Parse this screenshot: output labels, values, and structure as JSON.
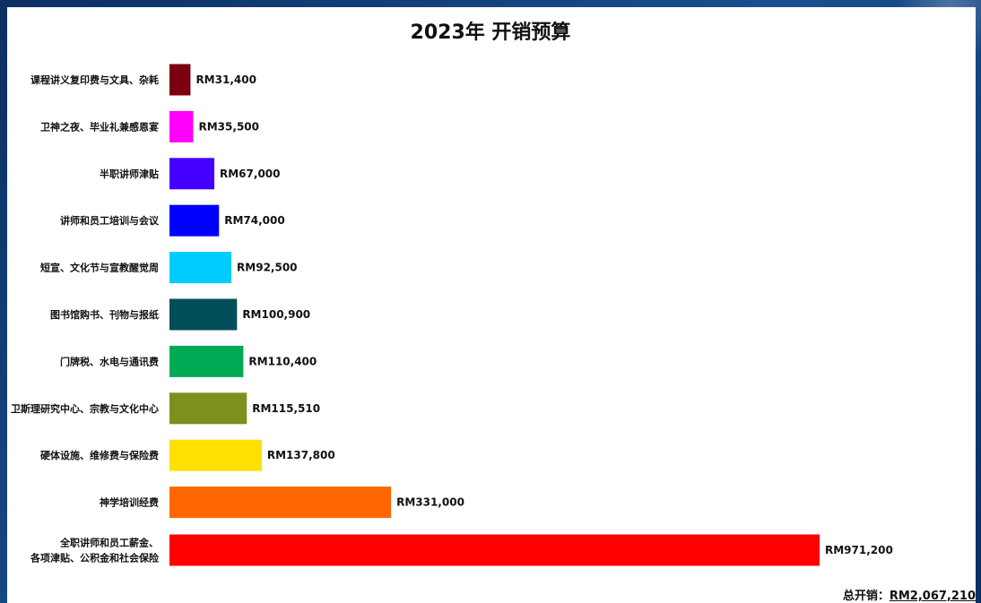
{
  "chart_data": {
    "type": "bar",
    "orientation": "horizontal",
    "title": "2023年 开销预算",
    "categories": [
      [
        "课程讲义复印费与文具、杂耗"
      ],
      [
        "卫神之夜、毕业礼兼感恩宴"
      ],
      [
        "半职讲师津贴"
      ],
      [
        "讲师和员工培训与会议"
      ],
      [
        "短宣、文化节与宣教醒觉周"
      ],
      [
        "图书馆购书、刊物与报纸"
      ],
      [
        "门牌税、水电与通讯费"
      ],
      [
        "卫斯理研究中心、宗教与文化中心"
      ],
      [
        "硬体设施、维修费与保险费"
      ],
      [
        "神学培训经费"
      ],
      [
        "全职讲师和员工薪金、",
        "各项津贴、公积金和社会保险"
      ]
    ],
    "values": [
      31400,
      35500,
      67000,
      74000,
      92500,
      100900,
      110400,
      115510,
      137800,
      331000,
      971200
    ],
    "value_labels": [
      "RM31,400",
      "RM35,500",
      "RM67,000",
      "RM74,000",
      "RM92,500",
      "RM100,900",
      "RM110,400",
      "RM115,510",
      "RM137,800",
      "RM331,000",
      "RM971,200"
    ],
    "colors": [
      "#7b0010",
      "#ff00ff",
      "#4400ff",
      "#0000ff",
      "#00ccff",
      "#004e5a",
      "#00aa55",
      "#7f8f1e",
      "#ffe000",
      "#ff6600",
      "#ff0000"
    ],
    "xlim": [
      0,
      971200
    ],
    "grid": false
  },
  "footer": {
    "total_label": "总开销：",
    "total_value": "RM2,067,210"
  }
}
